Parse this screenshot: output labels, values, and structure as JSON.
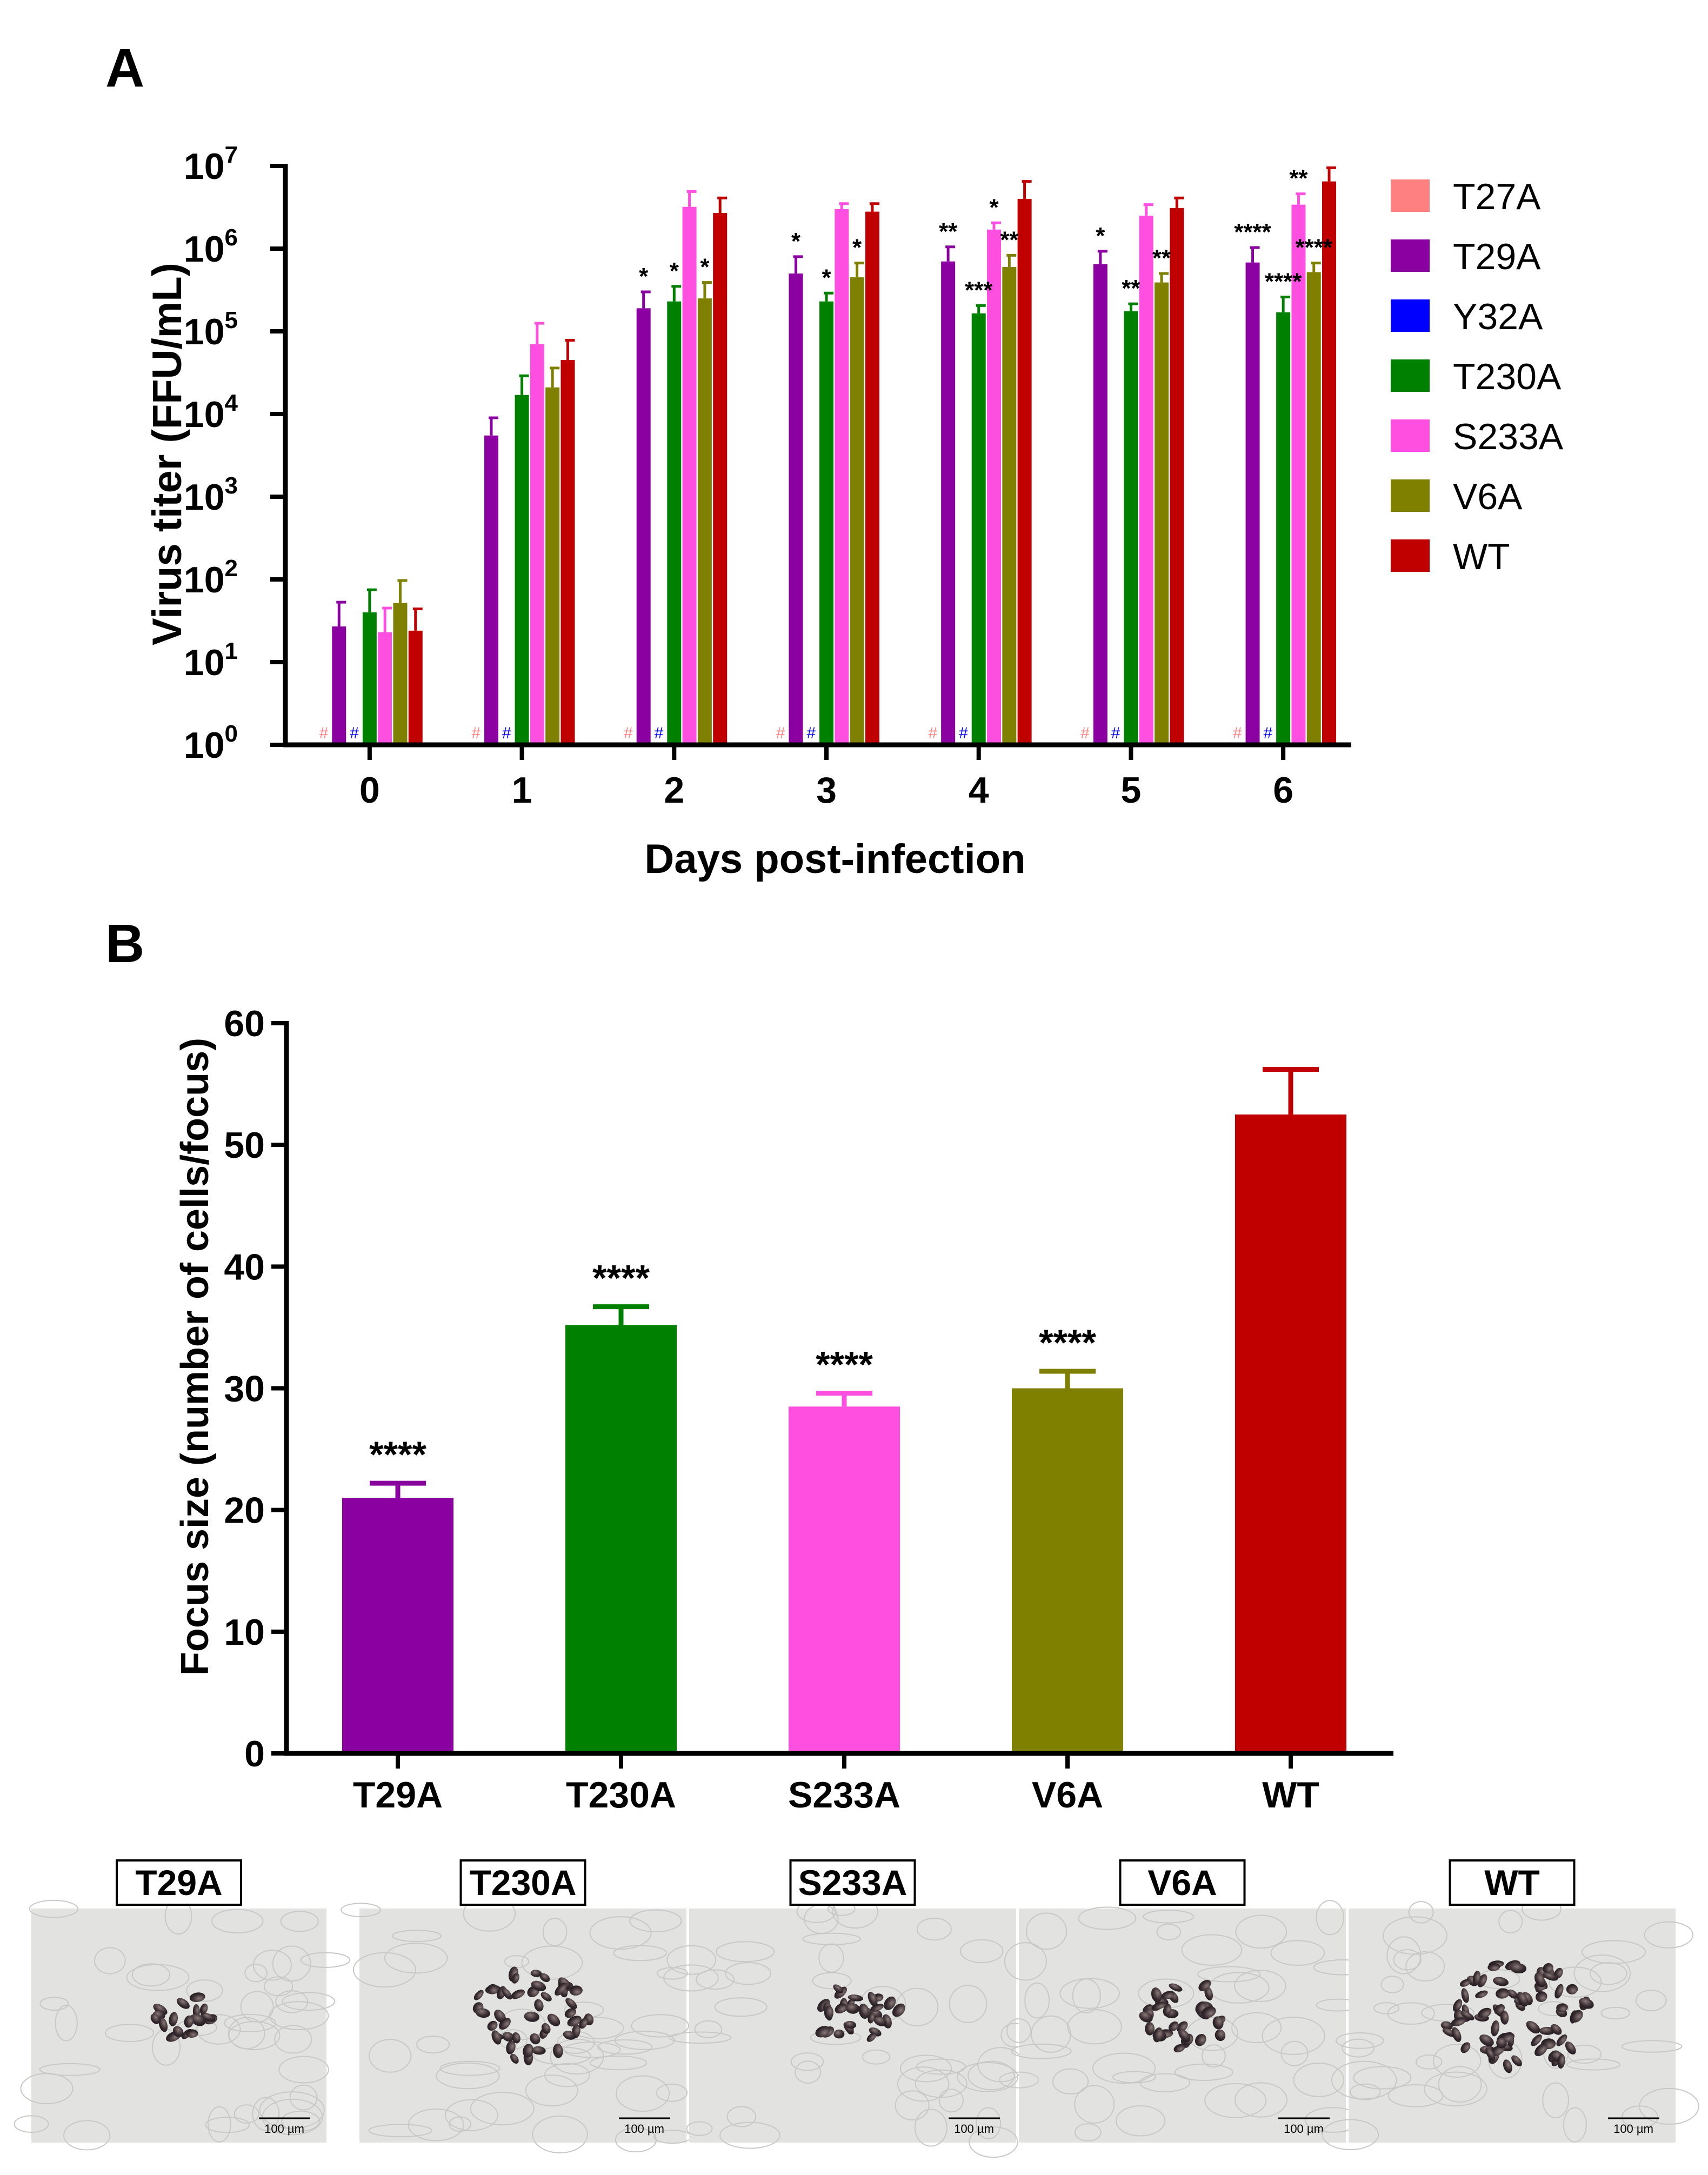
{
  "panel_a_label": "A",
  "panel_b_label": "B",
  "colors": {
    "T27A": "#ff8080",
    "T29A": "#8b00a0",
    "Y32A": "#0000ff",
    "T230A": "#008000",
    "S233A": "#ff4fe0",
    "V6A": "#808000",
    "WT": "#c00000"
  },
  "chart_data": [
    {
      "type": "bar",
      "title": "",
      "xlabel": "Days post-infection",
      "ylabel": "Virus titer (FFU/mL)",
      "yscale": "log",
      "ylim": [
        1,
        10000000
      ],
      "ytick_exponents": [
        "0",
        "1",
        "2",
        "3",
        "4",
        "5",
        "6",
        "7"
      ],
      "ytick_base": "10",
      "categories": [
        "0",
        "1",
        "2",
        "3",
        "4",
        "5",
        "6"
      ],
      "legend": [
        "T27A",
        "T29A",
        "Y32A",
        "T230A",
        "S233A",
        "V6A",
        "WT"
      ],
      "legend_position": "right",
      "below_detection_marker": "#",
      "series": [
        {
          "name": "T27A",
          "values": [
            null,
            null,
            null,
            null,
            null,
            null,
            null
          ],
          "errors": [
            null,
            null,
            null,
            null,
            null,
            null,
            null
          ]
        },
        {
          "name": "T29A",
          "values": [
            27,
            5500,
            190000,
            500000,
            700000,
            650000,
            680000
          ],
          "errors": [
            26,
            3500,
            110000,
            300000,
            350000,
            280000,
            350000
          ]
        },
        {
          "name": "Y32A",
          "values": [
            null,
            null,
            null,
            null,
            null,
            null,
            null
          ],
          "errors": [
            null,
            null,
            null,
            null,
            null,
            null,
            null
          ]
        },
        {
          "name": "T230A",
          "values": [
            40,
            17000,
            230000,
            230000,
            165000,
            175000,
            170000
          ],
          "errors": [
            35,
            12000,
            120000,
            60000,
            40000,
            40000,
            90000
          ]
        },
        {
          "name": "S233A",
          "values": [
            23,
            70000,
            3200000,
            3000000,
            1700000,
            2500000,
            3400000
          ],
          "errors": [
            22,
            55000,
            1700000,
            500000,
            350000,
            900000,
            1200000
          ]
        },
        {
          "name": "V6A",
          "values": [
            52,
            21000,
            250000,
            450000,
            600000,
            390000,
            520000
          ],
          "errors": [
            45,
            15000,
            140000,
            220000,
            230000,
            110000,
            150000
          ]
        },
        {
          "name": "WT",
          "values": [
            24,
            45000,
            2700000,
            2800000,
            4000000,
            3100000,
            6500000
          ],
          "errors": [
            20,
            33000,
            1400000,
            700000,
            2500000,
            1000000,
            3000000
          ]
        }
      ],
      "annotations": [
        {
          "series": "T29A",
          "day": "2",
          "text": "*"
        },
        {
          "series": "T230A",
          "day": "2",
          "text": "*"
        },
        {
          "series": "V6A",
          "day": "2",
          "text": "*"
        },
        {
          "series": "T29A",
          "day": "3",
          "text": "*"
        },
        {
          "series": "T230A",
          "day": "3",
          "text": "*"
        },
        {
          "series": "V6A",
          "day": "3",
          "text": "*"
        },
        {
          "series": "T29A",
          "day": "4",
          "text": "**"
        },
        {
          "series": "T230A",
          "day": "4",
          "text": "***"
        },
        {
          "series": "S233A",
          "day": "4",
          "text": "*"
        },
        {
          "series": "V6A",
          "day": "4",
          "text": "**"
        },
        {
          "series": "T29A",
          "day": "5",
          "text": "*"
        },
        {
          "series": "T230A",
          "day": "5",
          "text": "**"
        },
        {
          "series": "V6A",
          "day": "5",
          "text": "**"
        },
        {
          "series": "T29A",
          "day": "6",
          "text": "****"
        },
        {
          "series": "T230A",
          "day": "6",
          "text": "****"
        },
        {
          "series": "S233A",
          "day": "6",
          "text": "**"
        },
        {
          "series": "V6A",
          "day": "6",
          "text": "****"
        }
      ]
    },
    {
      "type": "bar",
      "title": "",
      "xlabel": "",
      "ylabel": "Focus size (number of cells/focus)",
      "ylim": [
        0,
        60
      ],
      "yticks": [
        "0",
        "10",
        "20",
        "30",
        "40",
        "50",
        "60"
      ],
      "categories": [
        "T29A",
        "T230A",
        "S233A",
        "V6A",
        "WT"
      ],
      "values": [
        21,
        35.2,
        28.5,
        30,
        52.5
      ],
      "errors": [
        1.2,
        1.5,
        1.1,
        1.4,
        3.7
      ],
      "annotations": [
        "****",
        "****",
        "****",
        "****",
        ""
      ]
    }
  ],
  "micrographs": [
    {
      "label": "T29A",
      "scale_bar": "100 µm",
      "cells": 18,
      "spread": 0.8
    },
    {
      "label": "T230A",
      "scale_bar": "100 µm",
      "cells": 48,
      "spread": 1.6
    },
    {
      "label": "S233A",
      "scale_bar": "100 µm",
      "cells": 30,
      "spread": 1.15
    },
    {
      "label": "V6A",
      "scale_bar": "100 µm",
      "cells": 32,
      "spread": 1.2
    },
    {
      "label": "WT",
      "scale_bar": "100 µm",
      "cells": 75,
      "spread": 2.0
    }
  ]
}
